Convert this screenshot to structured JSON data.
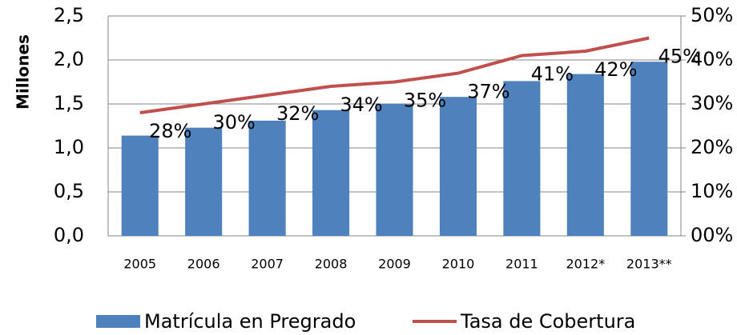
{
  "chart_data": {
    "type": "bar",
    "categories": [
      "2005",
      "2006",
      "2007",
      "2008",
      "2009",
      "2010",
      "2011",
      "2012*",
      "2013**"
    ],
    "y_label": "Millones",
    "series": [
      {
        "name": "Matrícula en Pregrado",
        "type": "bar",
        "color": "#4f81bd",
        "values": [
          1.14,
          1.23,
          1.31,
          1.43,
          1.5,
          1.58,
          1.76,
          1.84,
          1.98
        ]
      },
      {
        "name": "Tasa de Cobertura",
        "type": "line",
        "axis": "y2",
        "color": "#c0504d",
        "values": [
          28,
          30,
          32,
          34,
          35,
          37,
          41,
          42,
          45
        ],
        "value_labels": [
          "28%",
          "30%",
          "32%",
          "34%",
          "35%",
          "37%",
          "41%",
          "42%",
          "45%"
        ]
      }
    ],
    "ylim": [
      0,
      2.5
    ],
    "yticks": [
      {
        "value": 0,
        "label": "0,0"
      },
      {
        "value": 0.5,
        "label": "0,5"
      },
      {
        "value": 1,
        "label": "1,0"
      },
      {
        "value": 1.5,
        "label": "1,5"
      },
      {
        "value": 2,
        "label": "2,0"
      },
      {
        "value": 2.5,
        "label": "2,5"
      }
    ],
    "y2lim": [
      0,
      50
    ],
    "y2ticks": [
      {
        "value": 0,
        "label": "00%"
      },
      {
        "value": 10,
        "label": "10%"
      },
      {
        "value": 20,
        "label": "20%"
      },
      {
        "value": 30,
        "label": "30%"
      },
      {
        "value": 40,
        "label": "40%"
      },
      {
        "value": 50,
        "label": "50%"
      }
    ],
    "grid": true,
    "legend": "bottom"
  }
}
